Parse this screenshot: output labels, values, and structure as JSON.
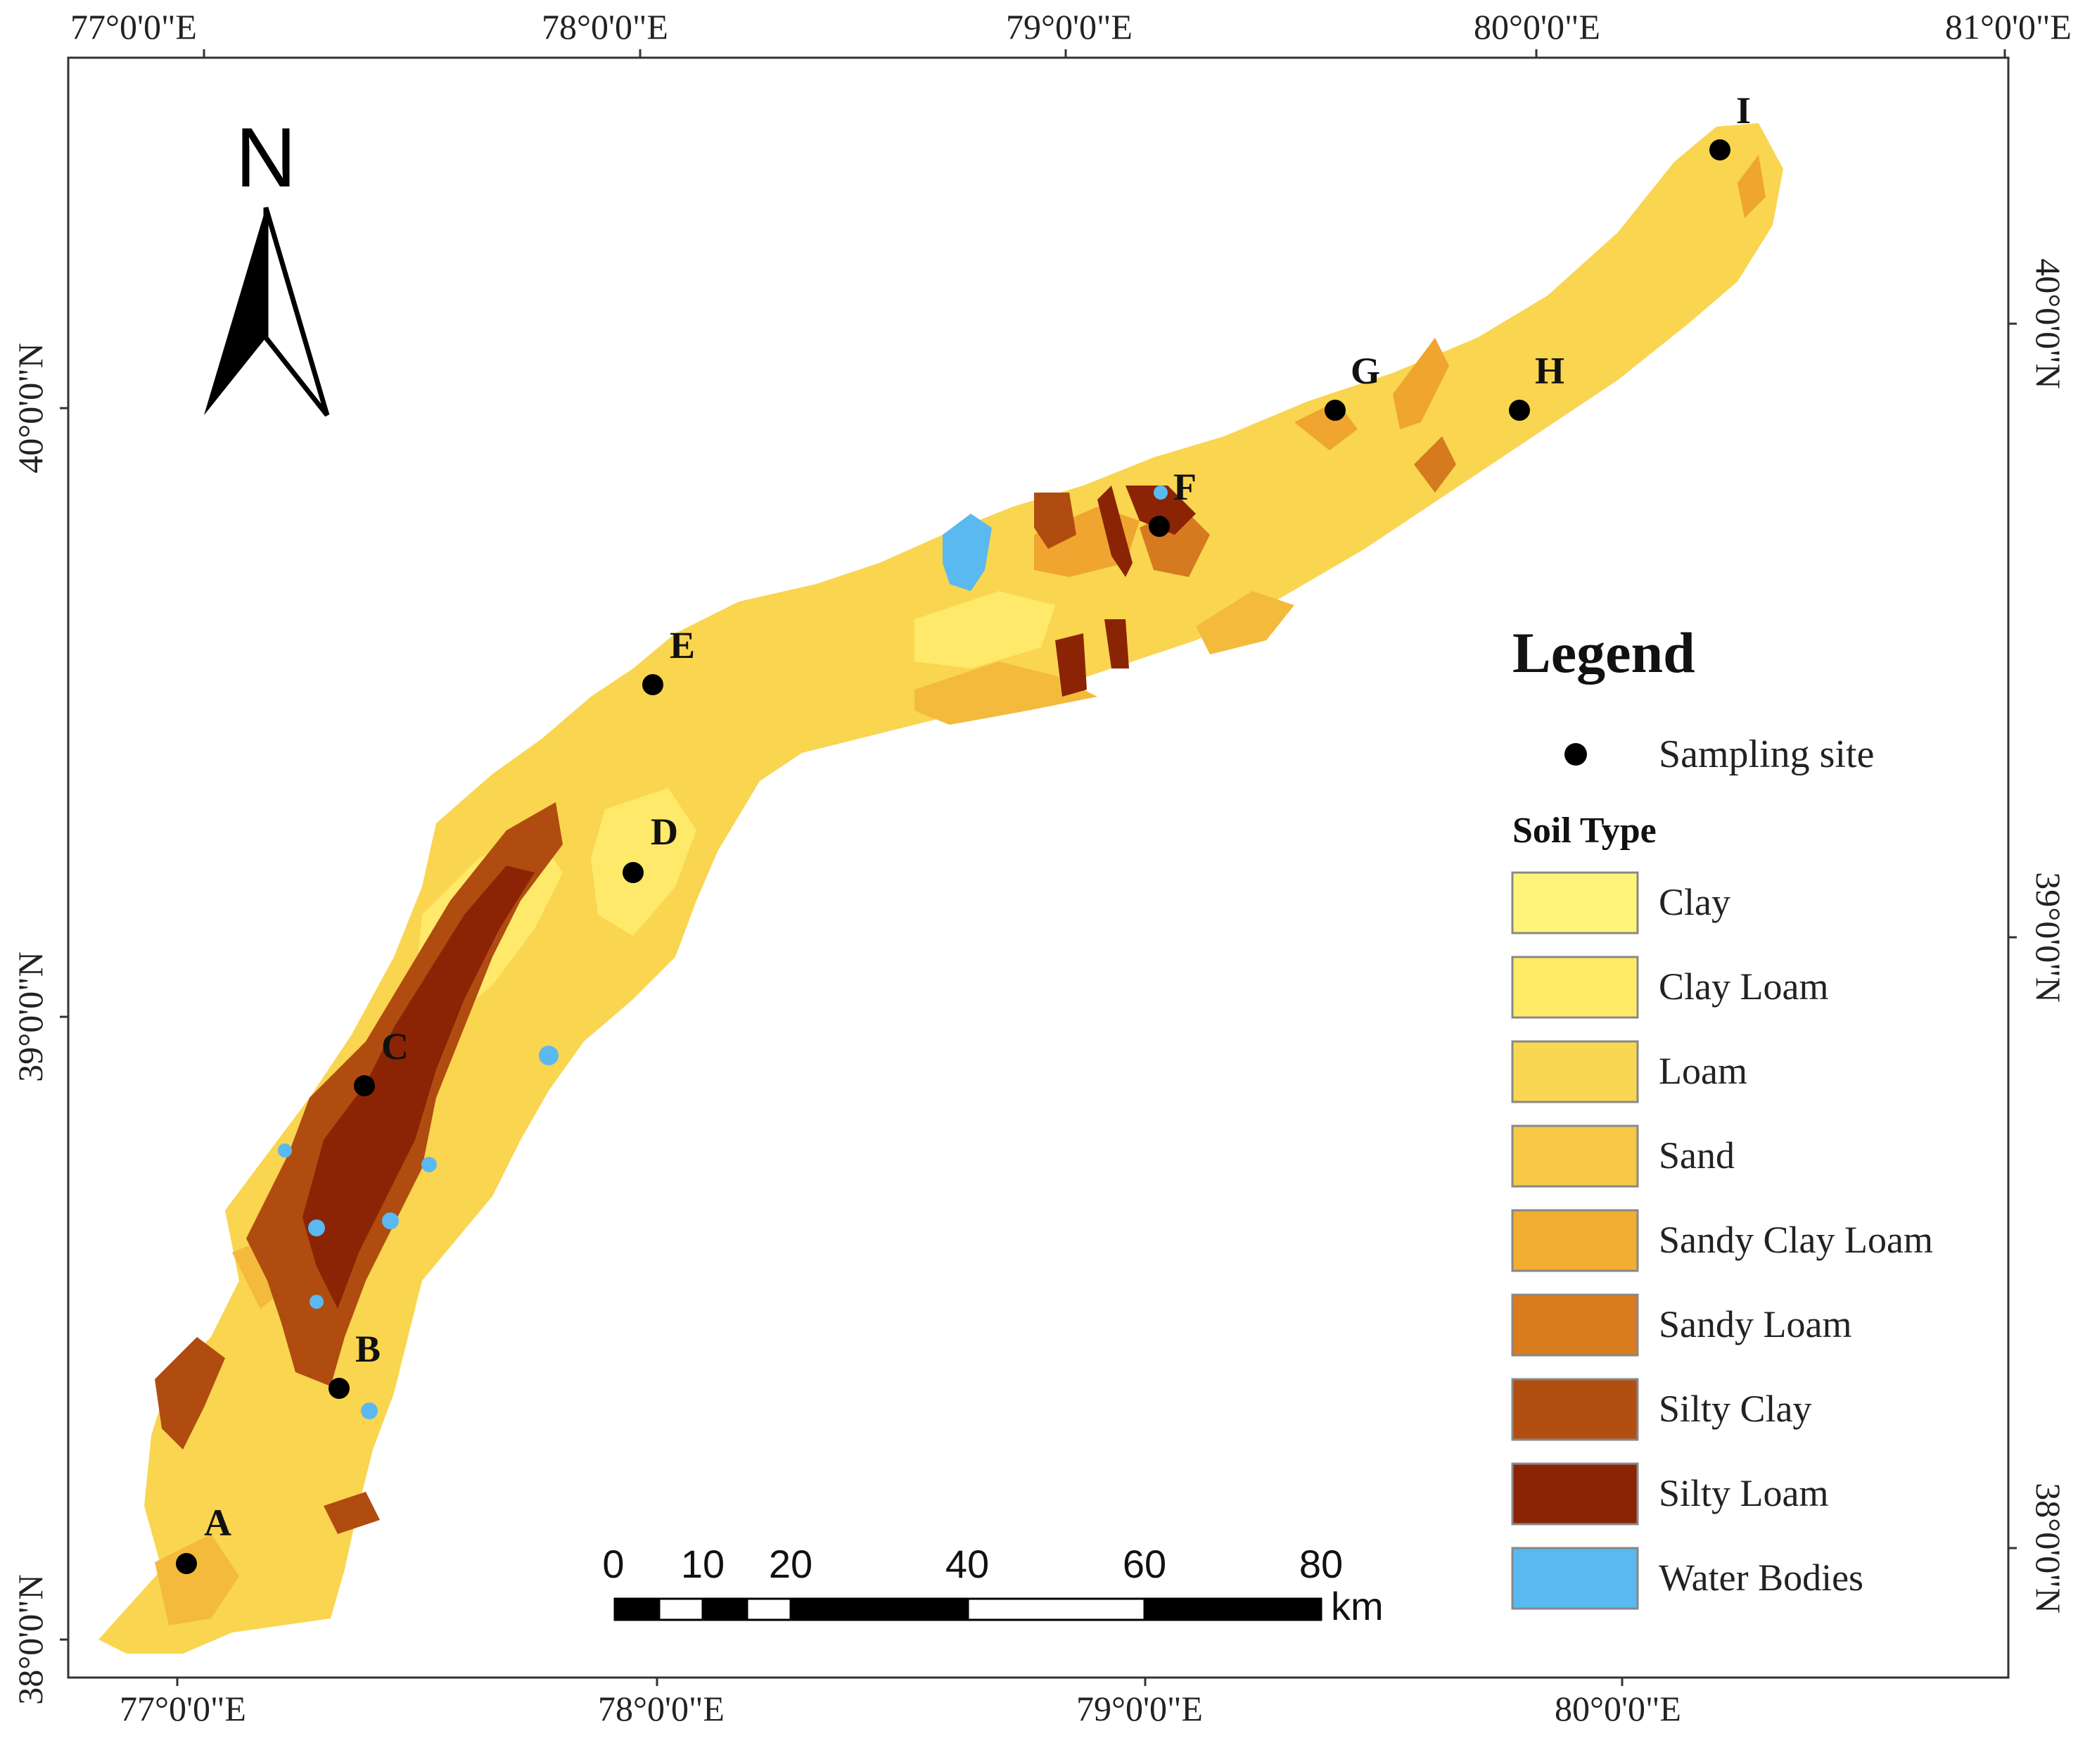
{
  "graticule": {
    "top": [
      "77°0'0\"E",
      "78°0'0\"E",
      "79°0'0\"E",
      "80°0'0\"E",
      "81°0'0\"E"
    ],
    "bottom": [
      "77°0'0\"E",
      "78°0'0\"E",
      "79°0'0\"E",
      "80°0'0\"E"
    ],
    "left": [
      "40°0'0\"N",
      "39°0'0\"N",
      "38°0'0\"N"
    ],
    "right": [
      "40°0'0\"N",
      "39°0'0\"N",
      "38°0'0\"N"
    ]
  },
  "north_arrow": {
    "label": "N"
  },
  "sites": [
    "A",
    "B",
    "C",
    "D",
    "E",
    "F",
    "G",
    "H",
    "I"
  ],
  "legend": {
    "title": "Legend",
    "sampling_label": "Sampling site",
    "soil_title": "Soil Type",
    "items": [
      {
        "label": "Clay",
        "color": "#FFF47A"
      },
      {
        "label": "Clay Loam",
        "color": "#FFEB66"
      },
      {
        "label": "Loam",
        "color": "#FAD752"
      },
      {
        "label": "Sand",
        "color": "#F8C846"
      },
      {
        "label": "Sandy Clay Loam",
        "color": "#F2AE32"
      },
      {
        "label": "Sandy Loam",
        "color": "#D97C1E"
      },
      {
        "label": "Silty Clay",
        "color": "#B24E10"
      },
      {
        "label": "Silty Loam",
        "color": "#8A2404"
      },
      {
        "label": "Water Bodies",
        "color": "#5AB9F0"
      }
    ]
  },
  "scale_bar": {
    "ticks": [
      "0",
      "10",
      "20",
      "40",
      "60",
      "80"
    ],
    "unit": "km"
  }
}
